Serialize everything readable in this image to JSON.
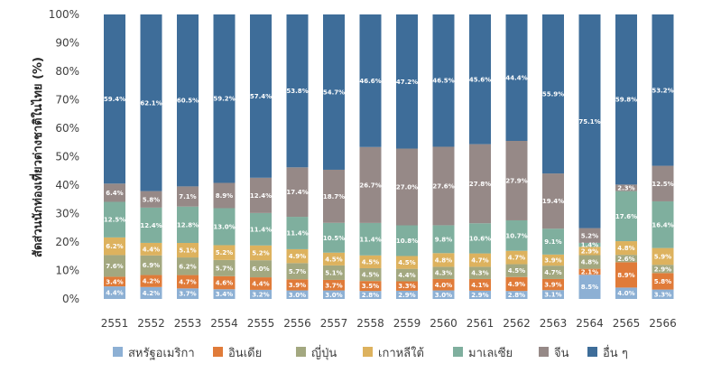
{
  "chart_data": {
    "type": "bar",
    "stacked": true,
    "percent_stacked": true,
    "ylabel": "สัดส่วนนักท่องเที่ยวต่างชาติในไทย (%)",
    "xlabel": "",
    "ylim": [
      0,
      100
    ],
    "y_ticks": [
      "0%",
      "10%",
      "20%",
      "30%",
      "40%",
      "50%",
      "60%",
      "70%",
      "80%",
      "90%",
      "100%"
    ],
    "grid": false,
    "legend_position": "bottom",
    "categories": [
      "2551",
      "2552",
      "2553",
      "2554",
      "2555",
      "2556",
      "2557",
      "2558",
      "2559",
      "2560",
      "2561",
      "2562",
      "2563",
      "2564",
      "2565",
      "2566"
    ],
    "series": [
      {
        "name": "สหรัฐอเมริกา",
        "color": "#8DB0D4",
        "values": [
          4.4,
          4.2,
          3.7,
          3.4,
          3.2,
          3.0,
          3.0,
          2.8,
          2.9,
          3.0,
          2.9,
          2.8,
          3.1,
          8.5,
          4.0,
          3.3
        ],
        "labels": [
          "4.4%",
          "4.2%",
          "3.7%",
          "3.4%",
          "3.2%",
          "3.0%",
          "3.0%",
          "2.8%",
          "2.9%",
          "3.0%",
          "2.9%",
          "2.8%",
          "3.1%",
          "8.5%",
          "4.0%",
          "3.3%"
        ]
      },
      {
        "name": "อินเดีย",
        "color": "#E07B39",
        "values": [
          3.4,
          4.2,
          4.7,
          4.6,
          4.4,
          3.9,
          3.7,
          3.5,
          3.3,
          4.0,
          4.1,
          4.9,
          3.9,
          2.1,
          8.9,
          5.8
        ],
        "labels": [
          "3.4%",
          "4.2%",
          "4.7%",
          "4.6%",
          "4.4%",
          "3.9%",
          "3.7%",
          "3.5%",
          "3.3%",
          "4.0%",
          "4.1%",
          "4.9%",
          "3.9%",
          "2.1%",
          "8.9%",
          "5.8%"
        ]
      },
      {
        "name": "ญี่ปุ่น",
        "color": "#A3A880",
        "values": [
          7.6,
          6.9,
          6.2,
          5.7,
          6.0,
          5.7,
          5.1,
          4.5,
          4.4,
          4.3,
          4.3,
          4.5,
          4.7,
          4.8,
          2.6,
          2.9
        ],
        "labels": [
          "7.6%",
          "6.9%",
          "6.2%",
          "5.7%",
          "6.0%",
          "5.7%",
          "5.1%",
          "4.5%",
          "4.4%",
          "4.3%",
          "4.3%",
          "4.5%",
          "4.7%",
          "4.8%",
          "2.6%",
          "2.9%"
        ]
      },
      {
        "name": "เกาหลีใต้",
        "color": "#DDB25E",
        "values": [
          6.2,
          4.4,
          5.1,
          5.2,
          5.2,
          4.9,
          4.5,
          4.5,
          4.5,
          4.8,
          4.7,
          4.7,
          3.9,
          2.9,
          4.8,
          5.9
        ],
        "labels": [
          "6.2%",
          "4.4%",
          "5.1%",
          "5.2%",
          "5.2%",
          "4.9%",
          "4.5%",
          "4.5%",
          "4.5%",
          "4.8%",
          "4.7%",
          "4.7%",
          "3.9%",
          "2.9%",
          "4.8%",
          "5.9%"
        ]
      },
      {
        "name": "มาเลเซีย",
        "color": "#7FAF9E",
        "values": [
          12.5,
          12.4,
          12.8,
          13.0,
          11.4,
          11.4,
          10.5,
          11.4,
          10.8,
          9.8,
          10.6,
          10.7,
          9.1,
          1.4,
          17.6,
          16.4
        ],
        "labels": [
          "12.5%",
          "12.4%",
          "12.8%",
          "13.0%",
          "11.4%",
          "11.4%",
          "10.5%",
          "11.4%",
          "10.8%",
          "9.8%",
          "10.6%",
          "10.7%",
          "9.1%",
          "1.4%",
          "17.6%",
          "16.4%"
        ]
      },
      {
        "name": "จีน",
        "color": "#968987",
        "values": [
          6.4,
          5.8,
          7.1,
          8.9,
          12.4,
          17.4,
          18.7,
          26.7,
          27.0,
          27.6,
          27.8,
          27.9,
          19.4,
          5.2,
          2.3,
          12.5
        ],
        "labels": [
          "6.4%",
          "5.8%",
          "7.1%",
          "8.9%",
          "12.4%",
          "17.4%",
          "18.7%",
          "26.7%",
          "27.0%",
          "27.6%",
          "27.8%",
          "27.9%",
          "19.4%",
          "5.2%",
          "2.3%",
          "12.5%"
        ]
      },
      {
        "name": "อื่น ๆ",
        "color": "#3E6D99",
        "values": [
          59.4,
          62.1,
          60.5,
          59.2,
          57.4,
          53.8,
          54.7,
          46.6,
          47.2,
          46.5,
          45.6,
          44.4,
          55.9,
          75.1,
          59.8,
          53.2
        ],
        "labels": [
          "59.4%",
          "62.1%",
          "60.5%",
          "59.2%",
          "57.4%",
          "53.8%",
          "54.7%",
          "46.6%",
          "47.2%",
          "46.5%",
          "45.6%",
          "44.4%",
          "55.9%",
          "75.1%",
          "59.8%",
          "53.2%"
        ]
      }
    ]
  }
}
